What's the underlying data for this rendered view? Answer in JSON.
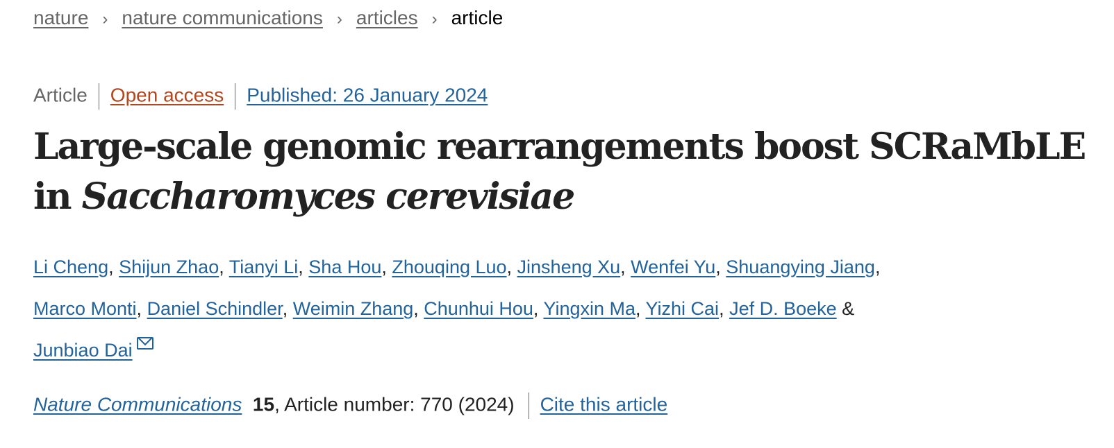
{
  "breadcrumb": [
    {
      "label": "nature"
    },
    {
      "label": "nature communications"
    },
    {
      "label": "articles"
    }
  ],
  "breadcrumb_current": "article",
  "meta": {
    "type": "Article",
    "access": "Open access",
    "published": "Published: 26 January 2024"
  },
  "title": {
    "main": "Large-scale genomic rearrangements boost SCRaMbLE in ",
    "species": "Saccharomyces cerevisiae"
  },
  "authors": [
    "Li Cheng",
    "Shijun Zhao",
    "Tianyi Li",
    "Sha Hou",
    "Zhouqing Luo",
    "Jinsheng Xu",
    "Wenfei Yu",
    "Shuangying Jiang",
    "Marco Monti",
    "Daniel Schindler",
    "Weimin Zhang",
    "Chunhui Hou",
    "Yingxin Ma",
    "Yizhi Cai",
    "Jef D. Boeke",
    "Junbiao Dai"
  ],
  "authors_conjunction": "&",
  "corresponding_icon": "mail-icon",
  "citation": {
    "journal": "Nature Communications",
    "volume": "15",
    "rest": ", Article number: 770 (2024)",
    "cite_link": "Cite this article"
  },
  "colors": {
    "link": "#23639b",
    "open_access": "#b0471f"
  }
}
